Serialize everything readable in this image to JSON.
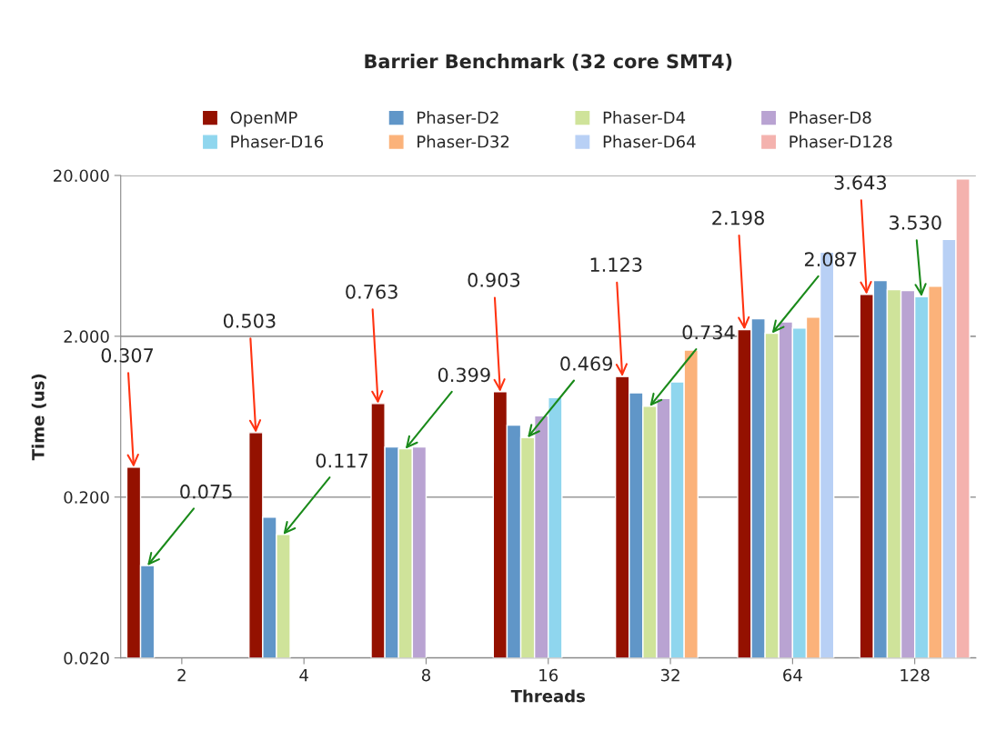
{
  "chart_data": {
    "type": "bar",
    "title": "Barrier Benchmark (32 core SMT4)",
    "xlabel": "Threads",
    "ylabel": "Time (us)",
    "categories": [
      "2",
      "4",
      "8",
      "16",
      "32",
      "64",
      "128"
    ],
    "series": [
      {
        "name": "OpenMP",
        "color": "#941100",
        "values": [
          0.307,
          0.503,
          0.763,
          0.903,
          1.123,
          2.198,
          3.643
        ],
        "value_labels": [
          "0.307",
          "0.503",
          "0.763",
          "0.903",
          "1.123",
          "2.198",
          "3.643"
        ]
      },
      {
        "name": "Phaser-D2",
        "color": "#6096c8",
        "values": [
          0.075,
          0.15,
          0.41,
          0.56,
          0.89,
          2.57,
          4.44
        ],
        "value_labels": [
          "0.075",
          null,
          null,
          null,
          null,
          null,
          null
        ]
      },
      {
        "name": "Phaser-D4",
        "color": "#cfe39a",
        "values": [
          null,
          0.117,
          0.399,
          0.469,
          0.734,
          2.087,
          3.9
        ],
        "value_labels": [
          null,
          "0.117",
          "0.399",
          "0.469",
          "0.734",
          "2.087",
          null
        ]
      },
      {
        "name": "Phaser-D8",
        "color": "#b9a3d2",
        "values": [
          null,
          null,
          0.41,
          0.64,
          0.82,
          2.46,
          3.85
        ]
      },
      {
        "name": "Phaser-D16",
        "color": "#8fd6ee",
        "values": [
          null,
          null,
          null,
          0.83,
          1.04,
          2.25,
          3.53
        ],
        "value_labels": [
          null,
          null,
          null,
          null,
          null,
          null,
          "3.530"
        ]
      },
      {
        "name": "Phaser-D32",
        "color": "#fbb27a",
        "values": [
          null,
          null,
          null,
          null,
          1.64,
          2.63,
          4.1
        ]
      },
      {
        "name": "Phaser-D64",
        "color": "#b8d0f5",
        "values": [
          null,
          null,
          null,
          null,
          null,
          6.67,
          8.0
        ]
      },
      {
        "name": "Phaser-D128",
        "color": "#f4b2ae",
        "values": [
          null,
          null,
          null,
          null,
          null,
          null,
          19.0
        ]
      }
    ],
    "log": true,
    "ylim": [
      0.02,
      20
    ],
    "yticks": [
      {
        "value": 0.02,
        "label": "0.020"
      },
      {
        "value": 0.2,
        "label": "0.200"
      },
      {
        "value": 2,
        "label": "2.000"
      },
      {
        "value": 20,
        "label": "20.000"
      }
    ],
    "grid": "y",
    "legend": "top"
  }
}
